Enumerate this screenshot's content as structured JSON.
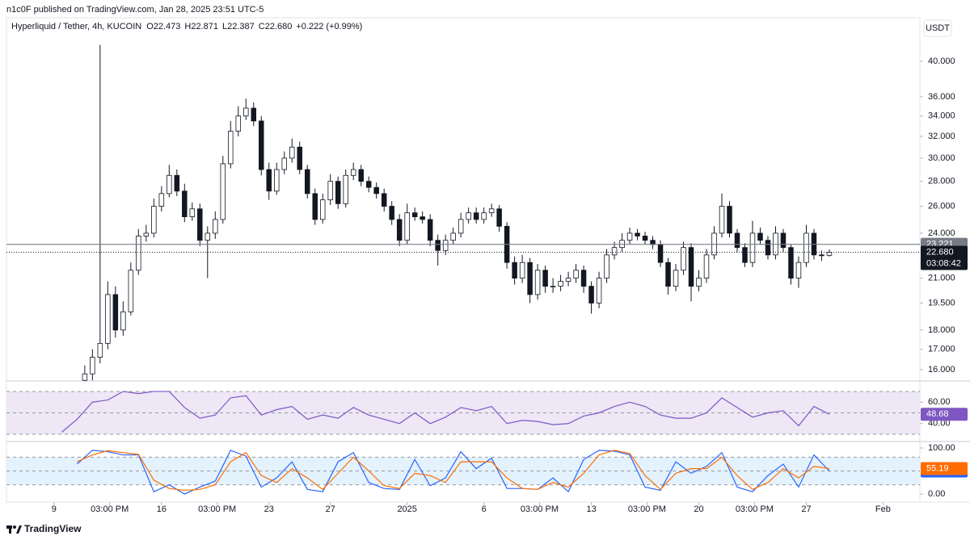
{
  "page": {
    "publisher": "n1c0F published on TradingView.com, Jan 28, 2025 23:51 UTC-5",
    "brand": "TradingView"
  },
  "chart_data": [
    {
      "type": "candlestick",
      "title": "Hyperliquid / Tether, 4h, KUCOIN",
      "legend_values": [
        "O22.473",
        "H22.871",
        "L22.387",
        "C22.680",
        "+0.222 (+0.99%)"
      ],
      "currency": "USDT",
      "log_scale": true,
      "up_color": "#ffffff",
      "down_color": "#131722",
      "wick_color": "#131722",
      "xlim": [
        -3.1,
        56.4
      ],
      "ylim": [
        15.47,
        45.2
      ],
      "yticks": [
        {
          "value": 16,
          "label": "16.000"
        },
        {
          "value": 17,
          "label": "17.000"
        },
        {
          "value": 18,
          "label": "18.000"
        },
        {
          "value": 19.5,
          "label": "19.500"
        },
        {
          "value": 21,
          "label": "21.000"
        },
        {
          "value": 24,
          "label": "24.000"
        },
        {
          "value": 26,
          "label": "26.000"
        },
        {
          "value": 28,
          "label": "28.000"
        },
        {
          "value": 30,
          "label": "30.000"
        },
        {
          "value": 32,
          "label": "32.000"
        },
        {
          "value": 34,
          "label": "34.000"
        },
        {
          "value": 36,
          "label": "36.000"
        },
        {
          "value": 40,
          "label": "40.000"
        }
      ],
      "price_line": 23.221,
      "price_line_color": "#787b86",
      "last_price": {
        "value": 22.68,
        "label": "22.680"
      },
      "countdown": "03:08:42",
      "x": [
        2,
        2.5,
        3,
        3.5,
        4,
        4.5,
        5,
        5.5,
        6,
        6.5,
        7,
        7.5,
        8,
        8.5,
        9,
        9.5,
        10,
        10.5,
        11,
        11.5,
        12,
        12.5,
        13,
        13.5,
        14,
        14.5,
        15,
        15.5,
        16,
        16.5,
        17,
        17.5,
        18,
        18.5,
        19,
        19.5,
        20,
        20.5,
        21,
        21.5,
        22,
        22.5,
        23,
        23.5,
        24,
        24.5,
        25,
        25.5,
        26,
        26.5,
        27,
        27.5,
        28,
        28.5,
        29,
        29.5,
        30,
        30.5,
        31,
        31.5,
        32,
        32.5,
        33,
        33.5,
        34,
        34.5,
        35,
        35.5,
        36,
        36.5,
        37,
        37.5,
        38,
        38.5,
        39,
        39.5,
        40,
        40.5,
        41,
        41.5,
        42,
        42.5,
        43,
        43.5,
        44,
        44.5,
        45,
        45.5,
        46,
        46.5,
        47,
        47.5,
        48,
        48.5,
        49,
        49.5,
        50,
        50.5
      ],
      "open": [
        15.5,
        15.8,
        16.6,
        17.3,
        20.0,
        18.0,
        19.0,
        21.5,
        23.8,
        24.0,
        26.0,
        27.0,
        28.5,
        27.2,
        25.2,
        25.8,
        23.5,
        24.0,
        25.0,
        29.5,
        32.5,
        34.0,
        34.8,
        33.5,
        29.0,
        27.2,
        29.0,
        30.0,
        31.0,
        29.0,
        27.0,
        25.0,
        26.5,
        28.0,
        26.2,
        28.5,
        29.0,
        28.0,
        27.5,
        27.0,
        26.0,
        25.0,
        23.5,
        25.5,
        25.2,
        25.0,
        23.5,
        22.8,
        23.5,
        24.0,
        25.0,
        25.5,
        25.0,
        25.5,
        25.8,
        24.5,
        22.0,
        21.0,
        22.0,
        20.0,
        21.5,
        20.5,
        20.5,
        20.8,
        21.0,
        21.5,
        20.5,
        19.5,
        21.0,
        22.5,
        23.0,
        23.5,
        24.0,
        23.8,
        23.5,
        23.2,
        22.0,
        20.5,
        21.5,
        23.0,
        20.5,
        21.0,
        22.5,
        24.0,
        26.0,
        24.0,
        23.0,
        22.0,
        24.0,
        23.5,
        22.5,
        24.0,
        23.0,
        21.0,
        22.0,
        24.0,
        22.5,
        22.473
      ],
      "high": [
        16.2,
        17.0,
        42.0,
        20.8,
        20.5,
        19.6,
        22.0,
        24.3,
        24.6,
        26.6,
        27.6,
        29.4,
        29.0,
        27.8,
        26.3,
        26.2,
        24.5,
        25.6,
        30.2,
        33.5,
        35.0,
        35.8,
        35.4,
        34.0,
        29.6,
        29.6,
        30.6,
        31.8,
        31.5,
        29.4,
        27.4,
        27.0,
        28.6,
        28.4,
        29.0,
        29.6,
        29.4,
        28.4,
        27.9,
        27.4,
        26.4,
        25.4,
        26.2,
        25.9,
        25.6,
        25.4,
        23.9,
        23.9,
        24.4,
        25.5,
        25.9,
        25.9,
        25.9,
        26.2,
        26.1,
        24.8,
        22.4,
        22.5,
        22.3,
        21.9,
        21.8,
        21.0,
        21.2,
        21.4,
        21.9,
        21.8,
        20.8,
        21.4,
        22.9,
        23.4,
        24.0,
        24.4,
        24.3,
        24.1,
        23.8,
        23.5,
        22.3,
        21.9,
        23.4,
        23.3,
        21.5,
        22.9,
        24.5,
        27.0,
        26.4,
        24.3,
        23.3,
        24.9,
        24.4,
        23.8,
        24.5,
        24.3,
        23.2,
        22.4,
        24.6,
        24.3,
        22.8,
        22.871
      ],
      "low": [
        15.2,
        15.5,
        16.3,
        17.0,
        17.6,
        17.7,
        18.8,
        21.2,
        23.4,
        23.7,
        25.6,
        26.7,
        26.8,
        24.8,
        24.9,
        23.1,
        21.0,
        23.6,
        24.7,
        29.1,
        32.0,
        33.6,
        33.0,
        28.5,
        26.5,
        26.9,
        28.6,
        29.6,
        28.6,
        26.6,
        24.6,
        24.7,
        26.1,
        25.8,
        25.9,
        28.1,
        27.6,
        27.1,
        26.6,
        25.6,
        24.6,
        23.1,
        23.2,
        24.9,
        24.7,
        23.1,
        21.8,
        22.5,
        23.2,
        23.7,
        24.7,
        24.7,
        24.7,
        25.2,
        24.1,
        21.6,
        20.6,
        20.7,
        19.5,
        19.7,
        20.1,
        20.1,
        20.2,
        20.5,
        20.7,
        20.1,
        18.9,
        19.2,
        20.7,
        22.2,
        22.7,
        23.2,
        23.5,
        23.2,
        22.9,
        21.7,
        20.0,
        20.2,
        21.2,
        19.6,
        20.2,
        20.7,
        22.2,
        23.7,
        23.7,
        22.7,
        21.7,
        21.7,
        23.2,
        22.2,
        22.2,
        22.7,
        20.6,
        20.4,
        21.7,
        22.2,
        22.1,
        22.387
      ],
      "close": [
        15.8,
        16.6,
        17.3,
        20.0,
        18.0,
        19.0,
        21.5,
        23.8,
        24.0,
        26.0,
        27.0,
        28.5,
        27.2,
        25.2,
        25.8,
        23.5,
        24.0,
        25.0,
        29.5,
        32.5,
        34.0,
        34.8,
        33.5,
        29.0,
        27.2,
        29.0,
        30.0,
        31.0,
        29.0,
        27.0,
        25.0,
        26.5,
        28.0,
        26.2,
        28.5,
        29.0,
        28.0,
        27.5,
        27.0,
        26.0,
        25.0,
        23.5,
        25.5,
        25.2,
        25.0,
        23.5,
        22.8,
        23.5,
        24.0,
        25.0,
        25.5,
        25.0,
        25.5,
        25.8,
        24.5,
        22.0,
        21.0,
        22.0,
        20.0,
        21.5,
        20.5,
        20.5,
        20.8,
        21.0,
        21.5,
        20.5,
        19.5,
        21.0,
        22.5,
        23.0,
        23.5,
        24.0,
        23.8,
        23.5,
        23.2,
        22.0,
        20.5,
        21.5,
        23.0,
        20.5,
        21.0,
        22.5,
        24.0,
        26.0,
        24.0,
        23.0,
        22.0,
        24.0,
        23.5,
        22.5,
        24.0,
        23.0,
        21.0,
        22.0,
        24.0,
        22.5,
        22.458,
        22.68
      ]
    },
    {
      "type": "line",
      "xlim": [
        -3.1,
        56.4
      ],
      "ylim": [
        24,
        79
      ],
      "yticks": [
        {
          "value": 60,
          "label": "60.00"
        },
        {
          "value": 40,
          "label": "40.00"
        }
      ],
      "levels": [
        30,
        50,
        70
      ],
      "band_color": "#ede7f6",
      "last_value_tags": true,
      "series": [
        {
          "color": "#7e57c2",
          "x": [
            0.5,
            1.5,
            2.5,
            3.5,
            4.5,
            5.5,
            6.5,
            7.5,
            8.5,
            9.5,
            10.5,
            11.5,
            12.5,
            13.5,
            14.5,
            15.5,
            16.5,
            17.5,
            18.5,
            19.5,
            20.5,
            21.5,
            22.5,
            23.5,
            24.5,
            25.5,
            26.5,
            27.5,
            28.5,
            29.5,
            30.5,
            31.5,
            32.5,
            33.5,
            34.5,
            35.5,
            36.5,
            37.5,
            38.5,
            39.5,
            40.5,
            41.5,
            42.5,
            43.5,
            44.5,
            45.5,
            46.5,
            47.5,
            48.5,
            49.5,
            50.5
          ],
          "values": [
            32,
            44,
            60,
            62,
            70,
            68,
            70,
            70,
            55,
            45,
            48,
            64,
            66,
            48,
            53,
            56,
            44,
            48,
            45,
            55,
            48,
            44,
            40,
            50,
            40,
            46,
            55,
            52,
            56,
            40,
            43,
            42,
            39,
            40,
            47,
            50,
            56,
            60,
            56,
            48,
            45,
            45,
            50,
            64,
            55,
            46,
            50,
            52,
            38,
            56,
            48.68
          ]
        }
      ]
    },
    {
      "type": "line",
      "xlim": [
        -3.1,
        56.4
      ],
      "ylim": [
        -17.5,
        110.5
      ],
      "yticks": [
        {
          "value": 100,
          "label": "100.00"
        },
        {
          "value": 0,
          "label": "0.00"
        }
      ],
      "levels": [
        20,
        50,
        80
      ],
      "band_color": "#e3f2fd",
      "last_value_tags": true,
      "xticks": [
        {
          "value": 0,
          "label": "9"
        },
        {
          "value": 3.625,
          "label": "03:00 PM"
        },
        {
          "value": 7,
          "label": "16"
        },
        {
          "value": 10.625,
          "label": "03:00 PM"
        },
        {
          "value": 14,
          "label": "23"
        },
        {
          "value": 18,
          "label": "27"
        },
        {
          "value": 23,
          "label": "2025"
        },
        {
          "value": 28,
          "label": "6"
        },
        {
          "value": 31.625,
          "label": "03:00 PM"
        },
        {
          "value": 35,
          "label": "13"
        },
        {
          "value": 38.625,
          "label": "03:00 PM"
        },
        {
          "value": 42,
          "label": "20"
        },
        {
          "value": 45.625,
          "label": "03:00 PM"
        },
        {
          "value": 49,
          "label": "27"
        },
        {
          "value": 54,
          "label": "Feb"
        }
      ],
      "series": [
        {
          "color": "#2962ff",
          "x": [
            1.5,
            2.5,
            3.5,
            4.5,
            5.5,
            6.5,
            7.5,
            8.5,
            9.5,
            10.5,
            11.5,
            12.5,
            13.5,
            14.5,
            15.5,
            16.5,
            17.5,
            18.5,
            19.5,
            20.5,
            21.5,
            22.5,
            23.5,
            24.5,
            25.5,
            26.5,
            27.5,
            28.5,
            29.5,
            30.5,
            31.5,
            32.5,
            33.5,
            34.5,
            35.5,
            36.5,
            37.5,
            38.5,
            39.5,
            40.5,
            41.5,
            42.5,
            43.5,
            44.5,
            45.5,
            46.5,
            47.5,
            48.5,
            49.5,
            50.5
          ],
          "values": [
            65,
            95,
            92,
            85,
            85,
            5,
            20,
            0,
            15,
            28,
            95,
            82,
            15,
            35,
            70,
            10,
            5,
            70,
            90,
            25,
            12,
            10,
            75,
            18,
            35,
            92,
            55,
            78,
            12,
            12,
            10,
            35,
            5,
            75,
            95,
            93,
            85,
            15,
            8,
            70,
            45,
            60,
            90,
            15,
            5,
            40,
            65,
            15,
            85,
            49.94
          ]
        },
        {
          "color": "#ff6d00",
          "x": [
            1.5,
            2.5,
            3.5,
            4.5,
            5.5,
            6.5,
            7.5,
            8.5,
            9.5,
            10.5,
            11.5,
            12.5,
            13.5,
            14.5,
            15.5,
            16.5,
            17.5,
            18.5,
            19.5,
            20.5,
            21.5,
            22.5,
            23.5,
            24.5,
            25.5,
            26.5,
            27.5,
            28.5,
            29.5,
            30.5,
            31.5,
            32.5,
            33.5,
            34.5,
            35.5,
            36.5,
            37.5,
            38.5,
            39.5,
            40.5,
            41.5,
            42.5,
            43.5,
            44.5,
            45.5,
            46.5,
            47.5,
            48.5,
            49.5,
            50.5
          ],
          "values": [
            70,
            85,
            94,
            90,
            86,
            30,
            12,
            8,
            10,
            20,
            70,
            90,
            40,
            25,
            55,
            35,
            10,
            45,
            80,
            50,
            18,
            12,
            45,
            40,
            25,
            70,
            70,
            70,
            35,
            12,
            10,
            25,
            15,
            45,
            85,
            95,
            88,
            40,
            10,
            45,
            55,
            55,
            80,
            40,
            10,
            25,
            55,
            35,
            60,
            55.19
          ]
        }
      ]
    }
  ]
}
